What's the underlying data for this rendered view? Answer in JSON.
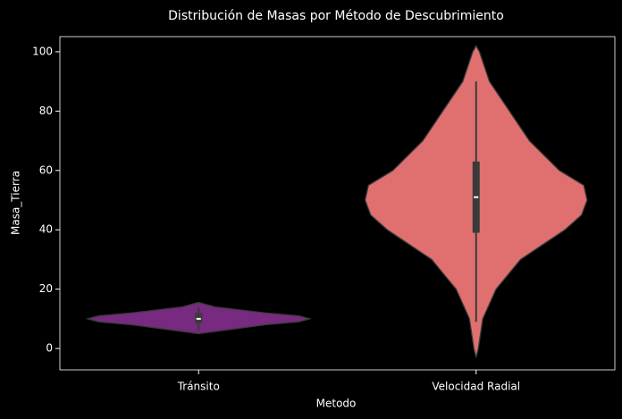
{
  "chart_data": {
    "type": "violin",
    "title": "Distribución de Masas por Método de Descubrimiento",
    "x_label": "Metodo",
    "y_label": "Masa_Tierra",
    "categories": [
      "Tránsito",
      "Velocidad Radial"
    ],
    "ylim": [
      -7.2,
      105.1
    ],
    "yticks": [
      0,
      20,
      40,
      60,
      80,
      100
    ],
    "series": [
      {
        "name": "Tránsito",
        "color": "#772a7f",
        "profile_y": [
          5,
          6,
          8,
          9,
          10,
          11,
          12,
          14,
          15.5
        ],
        "profile_density": [
          0,
          0.2,
          0.6,
          0.9,
          1,
          0.9,
          0.6,
          0.15,
          0
        ],
        "whisker_low": 6,
        "q1": 8.5,
        "median": 10,
        "q3": 12,
        "whisker_high": 14
      },
      {
        "name": "Velocidad Radial",
        "color": "#e07070",
        "profile_y": [
          -3,
          0,
          10,
          20,
          30,
          40,
          45,
          50,
          55,
          60,
          70,
          80,
          90,
          100,
          102
        ],
        "profile_density": [
          0,
          0.02,
          0.06,
          0.18,
          0.4,
          0.8,
          0.95,
          1,
          0.97,
          0.75,
          0.48,
          0.3,
          0.12,
          0.03,
          0
        ],
        "whisker_low": 9,
        "q1": 39,
        "median": 51,
        "q3": 63,
        "whisker_high": 90
      }
    ]
  }
}
